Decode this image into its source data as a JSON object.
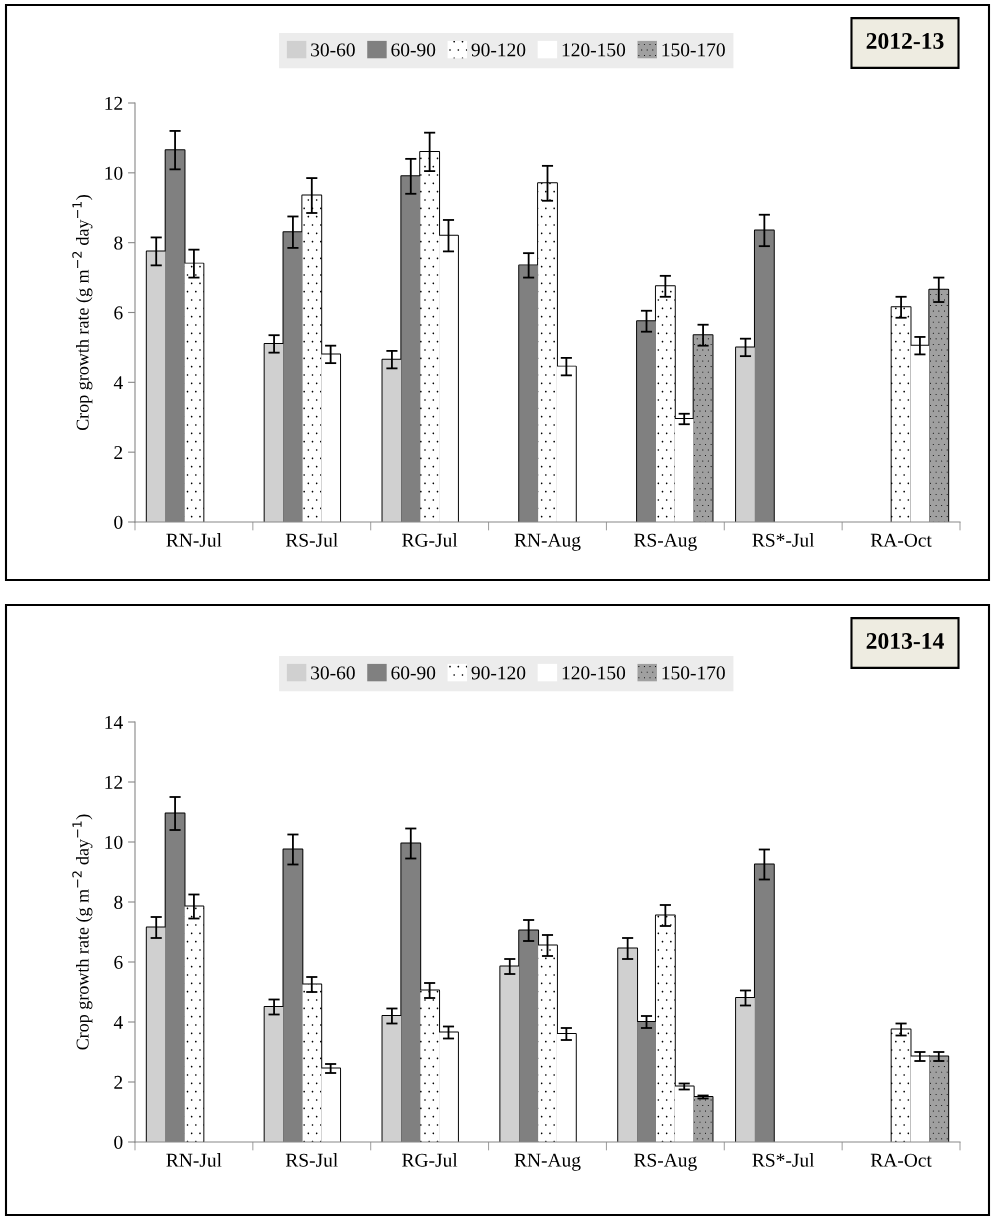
{
  "chart_data": [
    {
      "type": "bar",
      "title": "2012-13",
      "ylabel": "Crop growth rate (g m$^{−2}$ day$^{−1}$)",
      "categories": [
        "RN-Jul",
        "RS-Jul",
        "RG-Jul",
        "RN-Aug",
        "RS-Aug",
        "RS*-Jul",
        "RA-Oct"
      ],
      "ylim": [
        0,
        12
      ],
      "yticks": [
        0,
        2,
        4,
        6,
        8,
        10,
        12
      ],
      "legend": "top",
      "grid": false,
      "series": [
        {
          "name": "30-60",
          "color": "#d0d0d0",
          "values": [
            7.75,
            5.1,
            4.65,
            null,
            null,
            5.0,
            null
          ],
          "errors": [
            0.4,
            0.25,
            0.25,
            null,
            null,
            0.25,
            null
          ]
        },
        {
          "name": "60-90",
          "color": "#808080",
          "values": [
            10.65,
            8.3,
            9.9,
            7.35,
            5.75,
            8.35,
            null
          ],
          "errors": [
            0.55,
            0.45,
            0.5,
            0.35,
            0.3,
            0.45,
            null
          ]
        },
        {
          "name": "90-120",
          "color": "#ffffff",
          "values": [
            7.4,
            9.35,
            10.6,
            9.7,
            6.75,
            null,
            6.15
          ],
          "errors": [
            0.4,
            0.5,
            0.55,
            0.5,
            0.3,
            null,
            0.3
          ]
        },
        {
          "name": "120-150",
          "color": "#ffffff",
          "values": [
            null,
            4.8,
            8.2,
            4.45,
            2.95,
            null,
            5.05
          ],
          "errors": [
            null,
            0.25,
            0.45,
            0.25,
            0.15,
            null,
            0.25
          ]
        },
        {
          "name": "150-170",
          "color": "#a0a0a0",
          "values": [
            null,
            null,
            null,
            null,
            5.35,
            null,
            6.65
          ],
          "errors": [
            null,
            null,
            null,
            null,
            0.3,
            null,
            0.35
          ]
        }
      ]
    },
    {
      "type": "bar",
      "title": "2013-14",
      "ylabel": "Crop growth rate (g m$^{−2}$ day$^{−1}$)",
      "categories": [
        "RN-Jul",
        "RS-Jul",
        "RG-Jul",
        "RN-Aug",
        "RS-Aug",
        "RS*-Jul",
        "RA-Oct"
      ],
      "ylim": [
        0,
        14
      ],
      "yticks": [
        0,
        2,
        4,
        6,
        8,
        10,
        12,
        14
      ],
      "legend": "top",
      "grid": false,
      "series": [
        {
          "name": "30-60",
          "color": "#d0d0d0",
          "values": [
            7.15,
            4.5,
            4.2,
            5.85,
            6.45,
            4.8,
            null
          ],
          "errors": [
            0.35,
            0.25,
            0.25,
            0.25,
            0.35,
            0.25,
            null
          ]
        },
        {
          "name": "60-90",
          "color": "#808080",
          "values": [
            10.95,
            9.75,
            9.95,
            7.05,
            4.0,
            9.25,
            null
          ],
          "errors": [
            0.55,
            0.5,
            0.5,
            0.35,
            0.2,
            0.5,
            null
          ]
        },
        {
          "name": "90-120",
          "color": "#ffffff",
          "values": [
            7.85,
            5.25,
            5.05,
            6.55,
            7.55,
            null,
            3.75
          ],
          "errors": [
            0.4,
            0.25,
            0.25,
            0.35,
            0.35,
            null,
            0.2
          ]
        },
        {
          "name": "120-150",
          "color": "#ffffff",
          "values": [
            null,
            2.45,
            3.65,
            3.6,
            1.85,
            null,
            2.85
          ],
          "errors": [
            null,
            0.15,
            0.2,
            0.2,
            0.1,
            null,
            0.15
          ]
        },
        {
          "name": "150-170",
          "color": "#a0a0a0",
          "values": [
            null,
            null,
            null,
            null,
            1.5,
            null,
            2.85
          ],
          "errors": [
            null,
            null,
            null,
            null,
            0.05,
            null,
            0.15
          ]
        }
      ]
    }
  ]
}
